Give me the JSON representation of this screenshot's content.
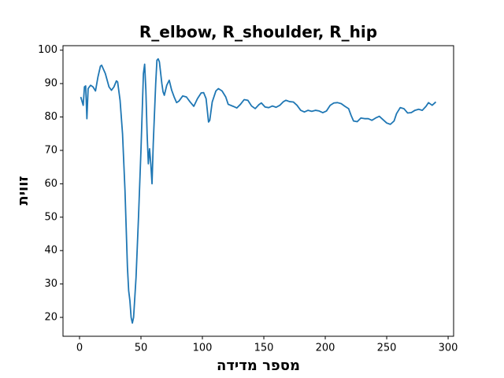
{
  "chart_data": {
    "type": "line",
    "title": "R_elbow, R_shoulder, R_hip",
    "xlabel": "מספר מדידה",
    "ylabel": "זווית",
    "x": [
      1,
      3,
      4,
      5,
      6,
      7,
      9,
      11,
      13,
      15,
      17,
      18,
      21,
      24,
      26,
      28,
      30,
      31,
      33,
      35,
      37,
      39,
      40,
      41,
      42,
      43,
      44,
      46,
      48,
      50,
      52,
      53,
      54,
      55,
      56,
      57,
      58,
      59,
      60,
      62,
      63,
      64,
      65,
      67,
      68,
      69,
      71,
      73,
      75,
      77,
      79,
      81,
      84,
      87,
      90,
      93,
      96,
      99,
      101,
      103,
      105,
      106,
      108,
      111,
      113,
      116,
      119,
      121,
      125,
      128,
      131,
      134,
      137,
      140,
      143,
      146,
      148,
      151,
      154,
      157,
      160,
      163,
      166,
      168,
      171,
      174,
      177,
      180,
      183,
      186,
      189,
      192,
      195,
      198,
      201,
      204,
      207,
      210,
      213,
      216,
      219,
      221,
      223,
      226,
      229,
      232,
      235,
      238,
      241,
      244,
      247,
      250,
      253,
      256,
      258,
      261,
      264,
      267,
      270,
      273,
      276,
      279,
      282,
      284,
      287,
      290
    ],
    "series": [
      {
        "color": "#1f77b4",
        "values": [
          86,
          83.5,
          89,
          89.3,
          79.5,
          88.5,
          89.5,
          89,
          87.8,
          92,
          95.2,
          95.5,
          93,
          89,
          88,
          89,
          90.8,
          90.5,
          85,
          75,
          58,
          35,
          28,
          25,
          20,
          18.3,
          20,
          32,
          50,
          70,
          93,
          95.8,
          88,
          75,
          66,
          70.5,
          66,
          60,
          72,
          90,
          97,
          97.4,
          96.5,
          90,
          87.5,
          86.5,
          89.5,
          91,
          88,
          86,
          84.3,
          84.8,
          86.3,
          86,
          84.5,
          83.2,
          85.5,
          87.2,
          87.3,
          85.5,
          78.5,
          79,
          84.5,
          87.8,
          88.5,
          87.8,
          86,
          83.8,
          83.2,
          82.7,
          83.8,
          85.2,
          85,
          83.3,
          82.5,
          83.7,
          84.2,
          83,
          82.8,
          83.3,
          82.9,
          83.5,
          84.6,
          85,
          84.6,
          84.5,
          83.5,
          82,
          81.5,
          82,
          81.7,
          82,
          81.8,
          81.3,
          81.8,
          83.5,
          84.2,
          84.3,
          84,
          83.2,
          82.5,
          80.5,
          78.8,
          78.6,
          79.7,
          79.5,
          79.5,
          79,
          79.7,
          80.2,
          79.2,
          78.2,
          77.8,
          78.8,
          81,
          82.8,
          82.5,
          81.2,
          81.3,
          82,
          82.3,
          82,
          83.2,
          84.3,
          83.5,
          84.5
        ]
      }
    ],
    "xlim": [
      -13.45,
      304.45
    ],
    "ylim": [
      14.35,
      101.35
    ],
    "xticks": [
      0,
      50,
      100,
      150,
      200,
      250,
      300
    ],
    "yticks": [
      20,
      30,
      40,
      50,
      60,
      70,
      80,
      90,
      100
    ]
  }
}
